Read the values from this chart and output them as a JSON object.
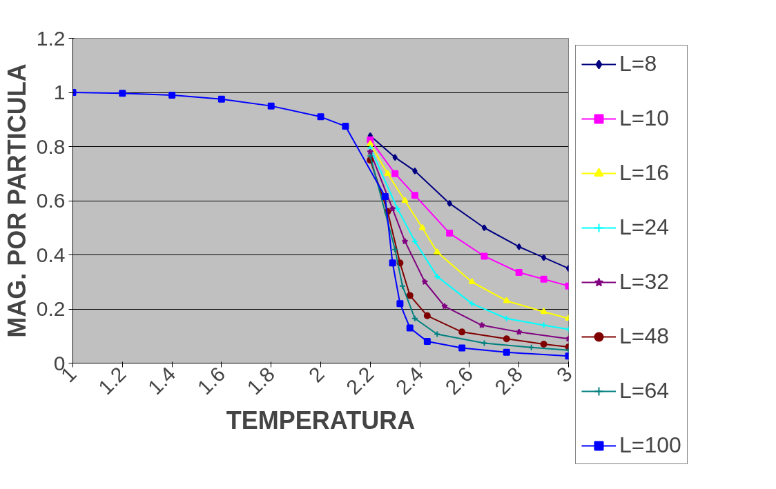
{
  "chart_data": {
    "type": "line",
    "xlabel": "TEMPERATURA",
    "ylabel": "MAG. POR PARTICULA",
    "xlim": [
      1,
      3
    ],
    "xticks": [
      1,
      1.2,
      1.4,
      1.6,
      1.8,
      2,
      2.2,
      2.4,
      2.6,
      2.8,
      3
    ],
    "ylim": [
      0,
      1.2
    ],
    "yticks": [
      0,
      0.2,
      0.4,
      0.6,
      0.8,
      1,
      1.2
    ],
    "grid": "y",
    "legend": "right",
    "line_style": "solid",
    "series": [
      {
        "name": "L=8",
        "color": "#000080",
        "marker": "diamond",
        "x": [
          2.2,
          2.3,
          2.38,
          2.52,
          2.66,
          2.8,
          2.9,
          3
        ],
        "values": [
          0.84,
          0.76,
          0.71,
          0.59,
          0.5,
          0.43,
          0.39,
          0.35
        ]
      },
      {
        "name": "L=10",
        "color": "#ff00ff",
        "marker": "square",
        "x": [
          2.2,
          2.3,
          2.38,
          2.52,
          2.66,
          2.8,
          2.9,
          3
        ],
        "values": [
          0.825,
          0.7,
          0.62,
          0.48,
          0.395,
          0.335,
          0.31,
          0.285
        ]
      },
      {
        "name": "L=16",
        "color": "#ffff00",
        "marker": "triangle",
        "x": [
          2.2,
          2.27,
          2.34,
          2.41,
          2.47,
          2.61,
          2.75,
          2.9,
          3
        ],
        "values": [
          0.81,
          0.7,
          0.6,
          0.5,
          0.41,
          0.3,
          0.23,
          0.19,
          0.165
        ]
      },
      {
        "name": "L=24",
        "color": "#00ffff",
        "marker": "cross",
        "x": [
          2.2,
          2.31,
          2.38,
          2.47,
          2.61,
          2.75,
          2.9,
          3
        ],
        "values": [
          0.795,
          0.57,
          0.45,
          0.32,
          0.22,
          0.165,
          0.14,
          0.125
        ]
      },
      {
        "name": "L=32",
        "color": "#800080",
        "marker": "star",
        "x": [
          2.2,
          2.29,
          2.34,
          2.42,
          2.5,
          2.65,
          2.8,
          3
        ],
        "values": [
          0.78,
          0.57,
          0.45,
          0.3,
          0.21,
          0.14,
          0.115,
          0.09
        ]
      },
      {
        "name": "L=48",
        "color": "#800000",
        "marker": "circle",
        "x": [
          2.2,
          2.27,
          2.32,
          2.36,
          2.43,
          2.57,
          2.75,
          2.9,
          3
        ],
        "values": [
          0.75,
          0.56,
          0.37,
          0.25,
          0.175,
          0.115,
          0.09,
          0.07,
          0.06
        ]
      },
      {
        "name": "L=64",
        "color": "#008080",
        "marker": "cross",
        "x": [
          2.2,
          2.3,
          2.33,
          2.38,
          2.47,
          2.66,
          2.85,
          3
        ],
        "values": [
          0.765,
          0.42,
          0.285,
          0.165,
          0.107,
          0.074,
          0.058,
          0.048
        ]
      },
      {
        "name": "L=100",
        "color": "#0000ff",
        "marker": "square",
        "x": [
          1,
          1.2,
          1.4,
          1.6,
          1.8,
          2,
          2.1,
          2.26,
          2.29,
          2.32,
          2.36,
          2.43,
          2.57,
          2.75,
          3
        ],
        "values": [
          1,
          0.997,
          0.99,
          0.975,
          0.95,
          0.91,
          0.875,
          0.615,
          0.37,
          0.22,
          0.13,
          0.08,
          0.056,
          0.04,
          0.026
        ]
      }
    ]
  }
}
